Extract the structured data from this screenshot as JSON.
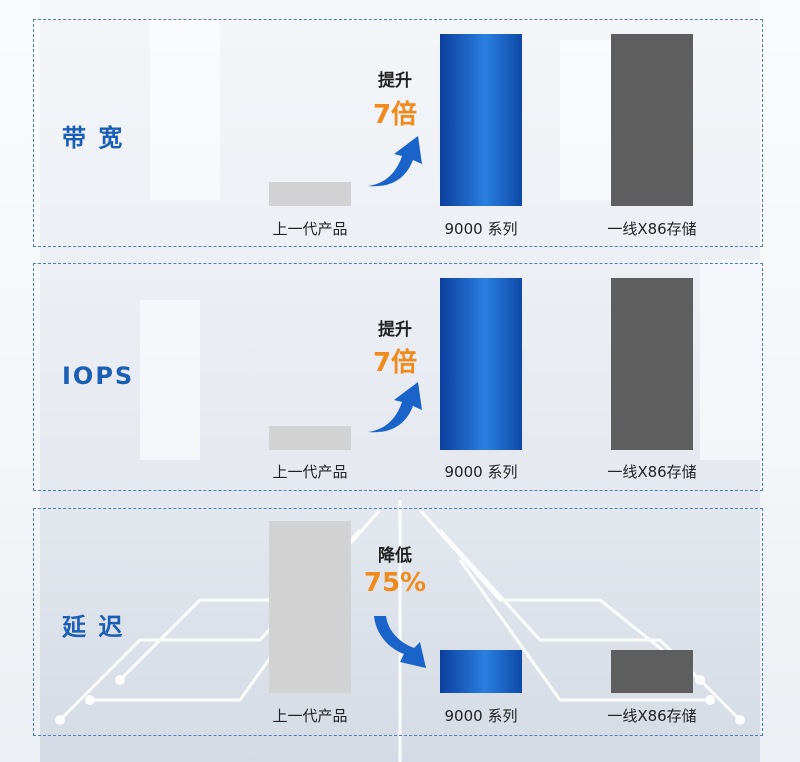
{
  "chart_data": [
    {
      "type": "bar",
      "row_label": "带 宽",
      "categories": [
        "上一代产品",
        "9000 系列",
        "一线X86存储"
      ],
      "values": [
        0.14,
        1.0,
        1.0
      ],
      "change": {
        "label": "提升",
        "value": "7倍",
        "direction": "up"
      },
      "colors": [
        "#d2d2d2",
        "#1a63c8",
        "#5e5e5e"
      ]
    },
    {
      "type": "bar",
      "row_label": "IOPS",
      "categories": [
        "上一代产品",
        "9000 系列",
        "一线X86存储"
      ],
      "values": [
        0.14,
        1.0,
        1.0
      ],
      "change": {
        "label": "提升",
        "value": "7倍",
        "direction": "up"
      },
      "colors": [
        "#d2d2d2",
        "#1a63c8",
        "#5e5e5e"
      ]
    },
    {
      "type": "bar",
      "row_label": "延 迟",
      "categories": [
        "上一代产品",
        "9000 系列",
        "一线X86存储"
      ],
      "values": [
        1.0,
        0.25,
        0.25
      ],
      "change": {
        "label": "降低",
        "value": "75%",
        "direction": "down"
      },
      "colors": [
        "#d2d2d2",
        "#1a63c8",
        "#5e5e5e"
      ]
    }
  ]
}
